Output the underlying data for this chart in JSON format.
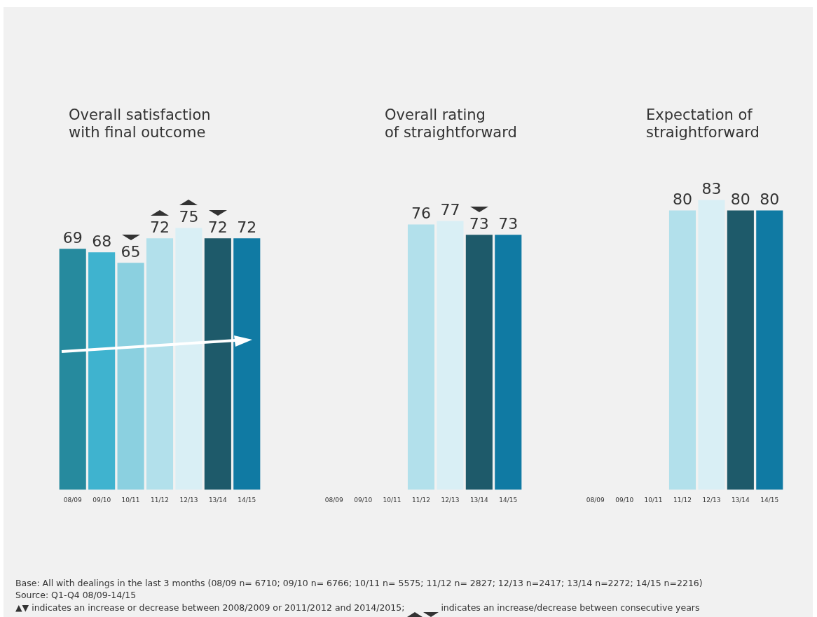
{
  "chart_data": [
    {
      "type": "bar",
      "title": "Overall satisfaction\nwith final outcome",
      "categories": [
        "08/09",
        "09/10",
        "10/11",
        "11/12",
        "12/13",
        "13/14",
        "14/15"
      ],
      "values": [
        69,
        68,
        65,
        72,
        75,
        72,
        72
      ],
      "colors": [
        "#268a9e",
        "#3fb3cf",
        "#8bd0e0",
        "#b2e0eb",
        "#d9eff5",
        "#1e5a6a",
        "#107aa3"
      ],
      "data_labels": true,
      "legend": false,
      "grid": false,
      "annotations": [
        "Base: All with dealings in the last 3 months (08/09 n= 6710; 09/10 n= 6766; 10/11 n= 5575; 11/12 n= 2827; 12/13 n=2417; 13/14 n=2272; 14/15 n=2216)",
        "Source: Q1-Q4 08/09-14/15",
        "▲▼ indicates an increase or decrease between 2008/2009  or 2011/2012 and 2014/2015; ",
        "indicates an increase/decrease between consecutive years"
      ]
    },
    {
      "type": "bar",
      "title": "Overall rating\nof straightforward",
      "categories": [
        "08/09",
        "09/10",
        "10/11",
        "11/12",
        "12/13",
        "13/14",
        "14/15"
      ],
      "values": [
        null,
        null,
        null,
        76,
        77,
        73,
        73
      ],
      "colors": [
        "#268a9e",
        "#3fb3cf",
        "#8bd0e0",
        "#b2e0eb",
        "#d9eff5",
        "#1e5a6a",
        "#107aa3"
      ],
      "data_labels": true,
      "legend": false,
      "grid": false
    },
    {
      "type": "bar",
      "title": "Expectation of\nstraightforward",
      "categories": [
        "08/09",
        "09/10",
        "10/11",
        "11/12",
        "12/13",
        "13/14",
        "14/15"
      ],
      "values": [
        null,
        null,
        null,
        80,
        83,
        80,
        80
      ],
      "colors": [
        "#268a9e",
        "#3fb3cf",
        "#8bd0e0",
        "#b2e0eb",
        "#d9eff5",
        "#1e5a6a",
        "#107aa3"
      ],
      "data_labels": true,
      "legend": false,
      "grid": false
    }
  ]
}
